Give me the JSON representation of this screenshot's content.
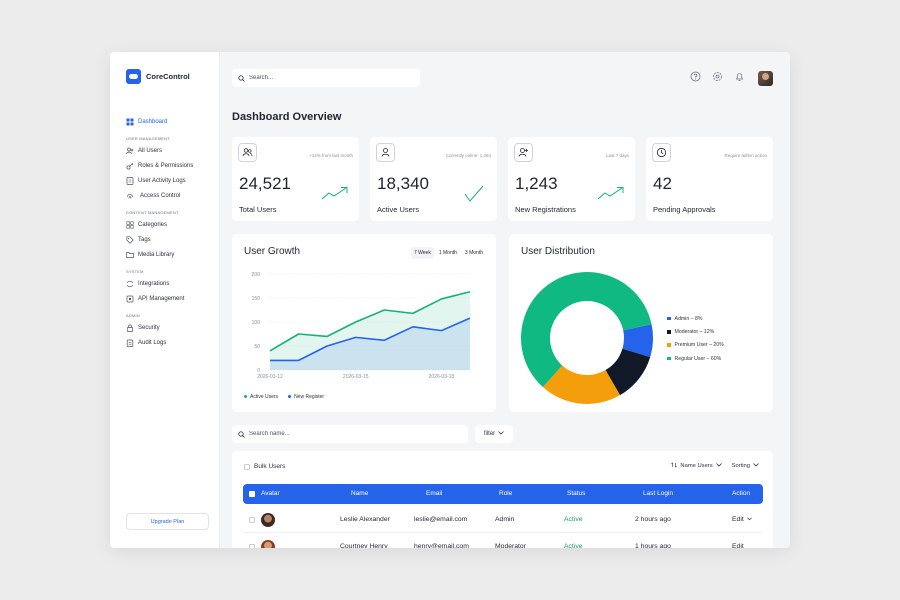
{
  "app": {
    "name": "CoreControl"
  },
  "sidebar": {
    "dashboard": "Dashboard",
    "sections": [
      {
        "title": "USER MANAGEMENT",
        "items": [
          "All Users",
          "Roles & Permissions",
          "User Activity Logs",
          "Access Control"
        ]
      },
      {
        "title": "CONTENT MANAGEMENT",
        "items": [
          "Categories",
          "Tags",
          "Media Library"
        ]
      },
      {
        "title": "SYSTEM",
        "items": [
          "Integrations",
          "API Management"
        ]
      },
      {
        "title": "ADMIN",
        "items": [
          "Security",
          "Audit Logs"
        ]
      }
    ],
    "upgrade_label": "Upgrade Plan"
  },
  "topbar": {
    "search_placeholder": "Search..."
  },
  "page": {
    "title": "Dashboard Overview"
  },
  "stats": [
    {
      "value": "24,521",
      "label": "Total Users",
      "note": "+12% from last month",
      "icon": "users-icon"
    },
    {
      "value": "18,340",
      "label": "Active Users",
      "note": "Currently online: 1,284",
      "icon": "user-icon"
    },
    {
      "value": "1,243",
      "label": "New Registrations",
      "note": "Last 7 days",
      "icon": "user-plus-icon"
    },
    {
      "value": "42",
      "label": "Pending Approvals",
      "note": "Require admin action",
      "icon": "clock-icon"
    }
  ],
  "growth": {
    "title": "User Growth",
    "ranges": [
      "7 Week",
      "1 Month",
      "3 Month"
    ],
    "selected_range": "7 Week"
  },
  "distribution": {
    "title": "User Distribution"
  },
  "chart_data": [
    {
      "type": "area",
      "title": "User Growth",
      "x": [
        "2026-03-12",
        "2026-03-13",
        "2026-03-14",
        "2026-03-15",
        "2026-03-16",
        "2026-03-17",
        "2026-03-18",
        "2026-03-19"
      ],
      "x_ticks": [
        "2026-03-12",
        "2026-03-15",
        "2026-03-18"
      ],
      "ylim": [
        0,
        200
      ],
      "y_ticks": [
        0,
        50,
        100,
        150,
        200
      ],
      "grid": true,
      "legend": "bottom-left",
      "series": [
        {
          "name": "Active Users",
          "color": "#16b07a",
          "values": [
            40,
            75,
            70,
            100,
            125,
            118,
            148,
            163
          ]
        },
        {
          "name": "New Register",
          "color": "#2563eb",
          "values": [
            20,
            20,
            50,
            68,
            62,
            90,
            82,
            108
          ]
        }
      ]
    },
    {
      "type": "pie",
      "title": "User Distribution",
      "donut": true,
      "legend": "right",
      "slices": [
        {
          "label": "Admin – 8%",
          "value": 8,
          "color": "#2563eb"
        },
        {
          "label": "Moderator – 12%",
          "value": 12,
          "color": "#111827"
        },
        {
          "label": "Premium User – 20%",
          "value": 20,
          "color": "#f59e0b"
        },
        {
          "label": "Regular User – 60%",
          "value": 60,
          "color": "#10b981"
        }
      ]
    }
  ],
  "filters": {
    "name_placeholder": "Search name...",
    "filter_label": "filter"
  },
  "table": {
    "bulk_label": "Bulk Users",
    "sort_name_label": "Name Users",
    "sorting_label": "Sorting",
    "columns": [
      "Avatar",
      "Name",
      "Email",
      "Role",
      "Status",
      "Last Login",
      "Action"
    ],
    "rows": [
      {
        "name": "Leslie Alexander",
        "email": "leslie@email.com",
        "role": "Admin",
        "status": "Active",
        "last_login": "2 hours ago",
        "action": "Edit"
      },
      {
        "name": "Courtney Henry",
        "email": "henry@email.com",
        "role": "Moderator",
        "status": "Active",
        "last_login": "1 hours ago",
        "action": "Edit"
      }
    ]
  },
  "colors": {
    "accent": "#2563eb",
    "active": "#22a15b"
  }
}
